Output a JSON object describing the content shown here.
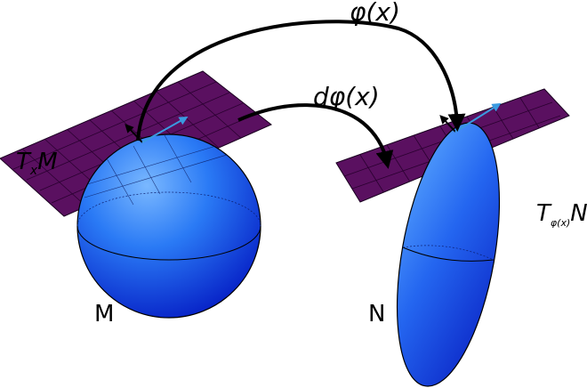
{
  "labels": {
    "phi": "φ(x)",
    "dphi": "dφ(x)",
    "tangent_m": {
      "T": "T",
      "sub": "x",
      "space": "M"
    },
    "tangent_n": {
      "T": "T",
      "sub": "φ(x)",
      "space": "N"
    },
    "manifold_m": "M",
    "manifold_n": "N"
  },
  "colors": {
    "plane": "#5a1060",
    "plane_grid": "#2a0030",
    "sphere_light": "#6ab0ff",
    "sphere_mid": "#1e6cf0",
    "sphere_dark": "#0a2ccc",
    "arrow": "#000000",
    "normal_vector": "#3a9ae0"
  }
}
